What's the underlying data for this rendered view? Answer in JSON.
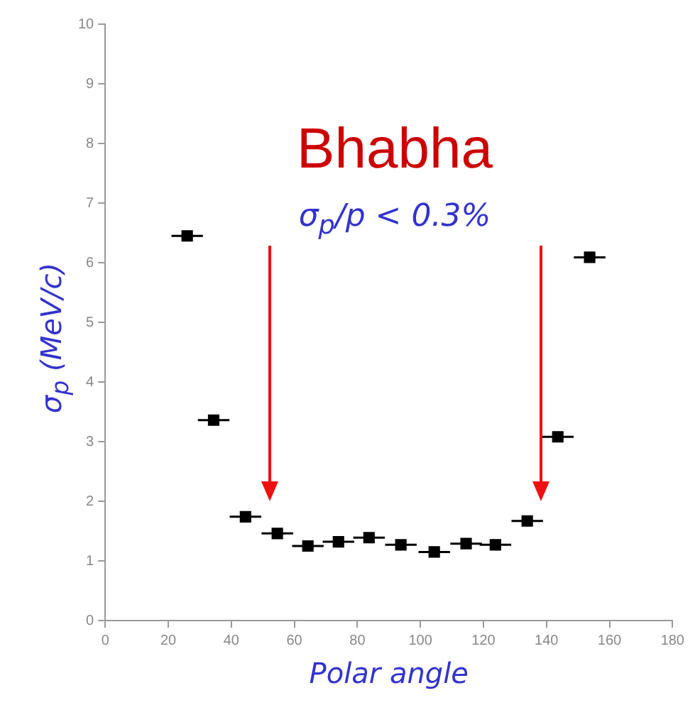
{
  "chart_data": {
    "type": "scatter",
    "xlabel": "Polar angle",
    "ylabel": "σ$_{p}$ (MeV/c)",
    "annotations": [
      "Bhabha",
      "σ$_{p}$/p < 0.3%"
    ],
    "x": [
      26,
      34.4,
      44.5,
      54.6,
      64.3,
      74,
      83.7,
      93.8,
      104.4,
      114.5,
      123.8,
      133.9,
      143.6,
      153.7
    ],
    "series": [
      {
        "color": "#000000",
        "values": [
          6.45,
          3.36,
          1.74,
          1.46,
          1.25,
          1.32,
          1.39,
          1.27,
          1.15,
          1.29,
          1.27,
          1.67,
          3.08,
          6.09
        ],
        "xerrors": [
          5,
          5,
          5,
          5,
          5,
          5,
          5,
          5,
          5,
          5,
          5,
          5,
          5,
          5
        ]
      }
    ],
    "xlim": [
      0,
      180
    ],
    "xticks": [
      0,
      20,
      40,
      60,
      80,
      100,
      120,
      140,
      160,
      180
    ],
    "ylim": [
      0,
      10
    ],
    "yticks": [
      0,
      1,
      2,
      3,
      4,
      5,
      6,
      7,
      8,
      9,
      10
    ],
    "grid": false,
    "legend": false,
    "marker": "square"
  }
}
